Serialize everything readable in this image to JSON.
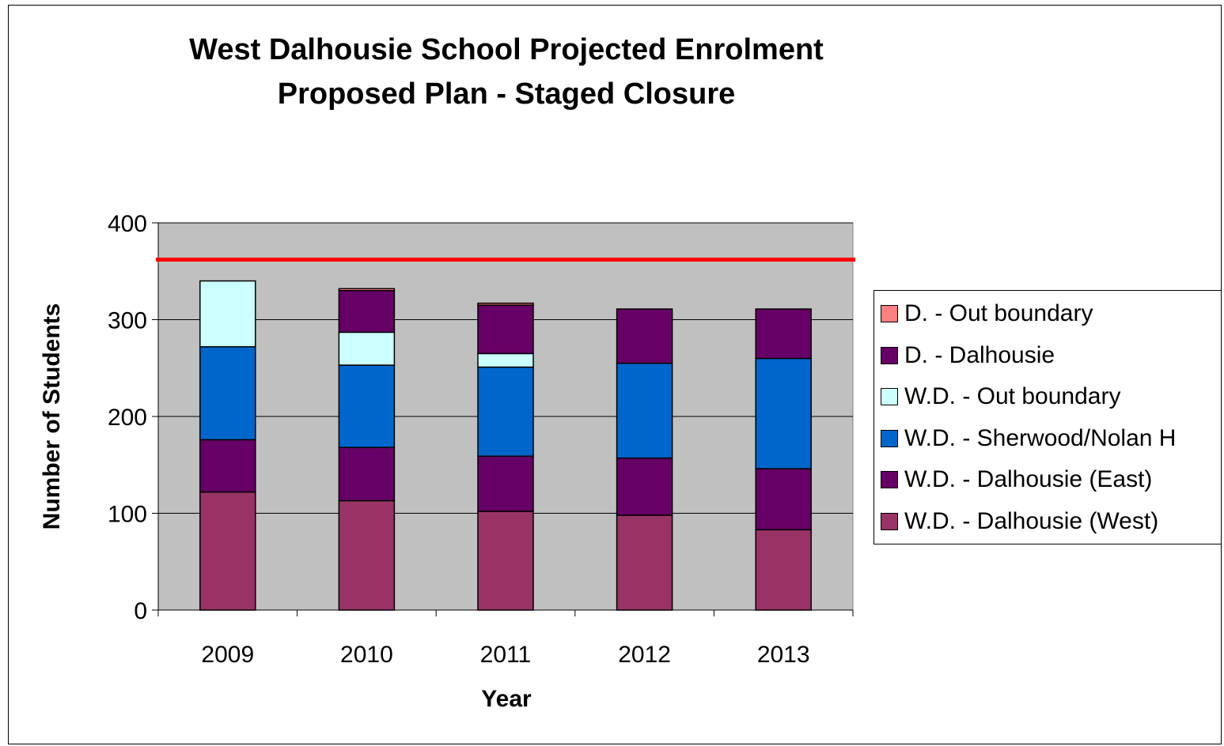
{
  "chart_data": {
    "type": "bar",
    "stacked": true,
    "title": [
      "West Dalhousie School Projected Enrolment",
      "Proposed Plan - Staged Closure"
    ],
    "xlabel": "Year",
    "ylabel": "Number of Students",
    "ylim": [
      0,
      400
    ],
    "yticks": [
      0,
      100,
      200,
      300,
      400
    ],
    "categories": [
      "2009",
      "2010",
      "2011",
      "2012",
      "2013"
    ],
    "series": [
      {
        "name": "W.D. - Dalhousie (West)",
        "color": "#993366",
        "values": [
          122,
          113,
          102,
          98,
          83
        ]
      },
      {
        "name": "W.D. - Dalhousie (East)",
        "color": "#660066",
        "values": [
          54,
          55,
          57,
          59,
          63
        ]
      },
      {
        "name": "W.D. - Sherwood/Nolan H",
        "color": "#0066cc",
        "values": [
          96,
          85,
          92,
          98,
          114
        ]
      },
      {
        "name": "W.D. - Out boundary",
        "color": "#ccffff",
        "values": [
          68,
          34,
          14,
          0,
          0
        ]
      },
      {
        "name": "D. - Dalhousie",
        "color": "#660066",
        "values": [
          0,
          43,
          50,
          56,
          51
        ]
      },
      {
        "name": "D. - Out boundary",
        "color": "#ff8080",
        "values": [
          0,
          2,
          2,
          0,
          0
        ]
      }
    ],
    "capacity_line": {
      "value": 362,
      "color": "#ff0000"
    },
    "plot_background": "#c0c0c0",
    "grid": true,
    "legend_position": "right"
  }
}
